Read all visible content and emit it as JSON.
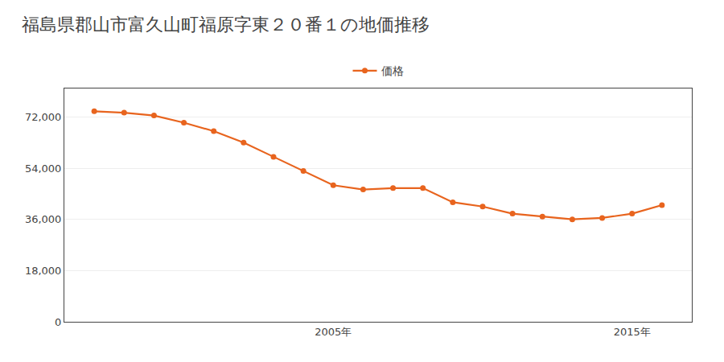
{
  "chart_data": {
    "type": "line",
    "title": "福島県郡山市富久山町福原字東２０番１の地価推移",
    "x": [
      1997,
      1998,
      1999,
      2000,
      2001,
      2002,
      2003,
      2004,
      2005,
      2006,
      2007,
      2008,
      2009,
      2010,
      2011,
      2012,
      2013,
      2014,
      2015,
      2016
    ],
    "series": [
      {
        "name": "価格",
        "color": "#e8641e",
        "marker": "circle",
        "line_style": "solid",
        "values": [
          74000,
          73500,
          72500,
          70000,
          67000,
          63000,
          58000,
          53000,
          48000,
          46500,
          47000,
          47000,
          42000,
          40500,
          38000,
          37000,
          36000,
          36500,
          38000,
          41000
        ]
      }
    ],
    "xlim": [
      1996,
      2017
    ],
    "xticks": [
      {
        "value": 2005,
        "label": "2005年"
      },
      {
        "value": 2015,
        "label": "2015年"
      }
    ],
    "ylim": [
      0,
      82000
    ],
    "yticks": [
      0,
      {
        "value": 18000,
        "label": "18,000"
      },
      {
        "value": 36000,
        "label": "36,000"
      },
      {
        "value": 54000,
        "label": "54,000"
      },
      {
        "value": 72000,
        "label": "72,000"
      }
    ],
    "grid": true,
    "legend": "top"
  }
}
